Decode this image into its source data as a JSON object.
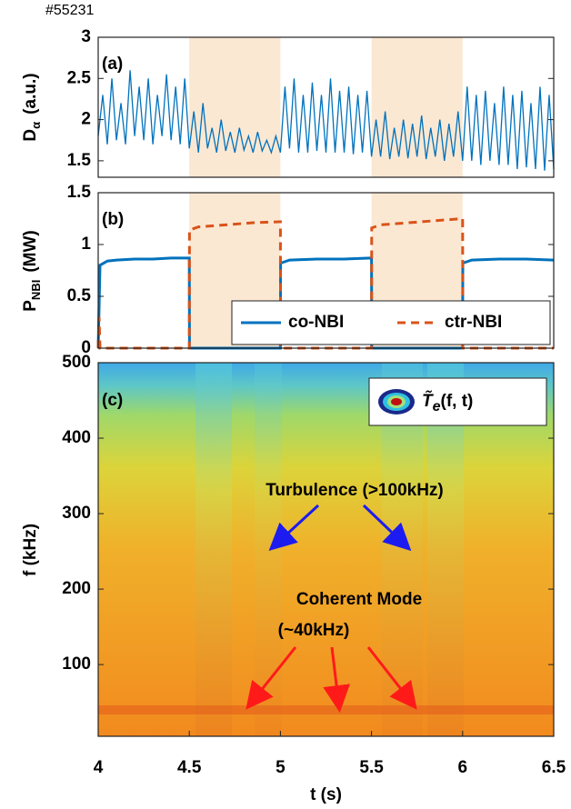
{
  "shot": "#55231",
  "chart_data": [
    {
      "type": "line",
      "label": "(a)",
      "ylabel": {
        "main": "D",
        "sub": "α",
        "unit": "(a.u.)"
      },
      "color": "#0072bd",
      "xlim": [
        4,
        6.5
      ],
      "ylim": [
        1.3,
        3
      ],
      "yticks": [
        1.5,
        2,
        2.5,
        3
      ],
      "highlight_spans": [
        [
          4.5,
          5
        ],
        [
          5.5,
          6
        ]
      ],
      "x": [
        4,
        4.025,
        4.05,
        4.075,
        4.1,
        4.125,
        4.15,
        4.175,
        4.2,
        4.225,
        4.25,
        4.275,
        4.3,
        4.325,
        4.35,
        4.375,
        4.4,
        4.425,
        4.45,
        4.475,
        4.5,
        4.525,
        4.55,
        4.575,
        4.6,
        4.625,
        4.65,
        4.675,
        4.7,
        4.725,
        4.75,
        4.775,
        4.8,
        4.825,
        4.85,
        4.875,
        4.9,
        4.925,
        4.95,
        4.975,
        5,
        5.025,
        5.05,
        5.075,
        5.1,
        5.125,
        5.15,
        5.175,
        5.2,
        5.225,
        5.25,
        5.275,
        5.3,
        5.325,
        5.35,
        5.375,
        5.4,
        5.425,
        5.45,
        5.475,
        5.5,
        5.525,
        5.55,
        5.575,
        5.6,
        5.625,
        5.65,
        5.675,
        5.7,
        5.725,
        5.75,
        5.775,
        5.8,
        5.825,
        5.85,
        5.875,
        5.9,
        5.925,
        5.95,
        5.975,
        6,
        6.025,
        6.05,
        6.075,
        6.1,
        6.125,
        6.15,
        6.175,
        6.2,
        6.225,
        6.25,
        6.275,
        6.3,
        6.325,
        6.35,
        6.375,
        6.4,
        6.425,
        6.45,
        6.475,
        6.5
      ],
      "values": [
        1.8,
        2.3,
        1.7,
        2.5,
        1.75,
        2.2,
        1.7,
        2.6,
        1.8,
        2.4,
        1.75,
        2.5,
        1.7,
        2.3,
        1.8,
        2.55,
        1.75,
        2.4,
        1.7,
        2.5,
        1.65,
        2.1,
        1.6,
        2.2,
        1.65,
        1.9,
        1.6,
        2.0,
        1.62,
        1.85,
        1.6,
        1.9,
        1.63,
        1.8,
        1.6,
        1.85,
        1.62,
        1.75,
        1.6,
        1.8,
        1.6,
        2.4,
        1.65,
        2.5,
        1.6,
        2.3,
        1.6,
        2.45,
        1.62,
        2.3,
        1.6,
        2.5,
        1.6,
        2.35,
        1.6,
        2.4,
        1.58,
        2.3,
        1.6,
        2.35,
        1.55,
        2.0,
        1.55,
        2.1,
        1.52,
        1.9,
        1.55,
        2.0,
        1.53,
        1.95,
        1.55,
        2.05,
        1.52,
        1.9,
        1.55,
        2.0,
        1.5,
        1.95,
        1.55,
        2.1,
        1.5,
        2.4,
        1.5,
        2.3,
        1.45,
        2.35,
        1.5,
        2.2,
        1.45,
        2.4,
        1.45,
        2.3,
        1.4,
        2.35,
        1.42,
        2.2,
        1.4,
        2.4,
        1.38,
        2.3,
        1.4
      ]
    },
    {
      "type": "line",
      "label": "(b)",
      "ylabel": {
        "main": "P",
        "sub": "NBI",
        "unit": "(MW)"
      },
      "xlim": [
        4,
        6.5
      ],
      "ylim": [
        0,
        1.5
      ],
      "yticks": [
        0,
        0.5,
        1,
        1.5
      ],
      "highlight_spans": [
        [
          4.5,
          5
        ],
        [
          5.5,
          6
        ]
      ],
      "legend_position": "lower right",
      "series": [
        {
          "name": "co-NBI",
          "color": "#0072bd",
          "linestyle": "solid",
          "x": [
            4,
            4.01,
            4.05,
            4.1,
            4.2,
            4.3,
            4.4,
            4.5,
            4.501,
            5.0,
            5.001,
            5.05,
            5.2,
            5.35,
            5.5,
            5.501,
            6.0,
            6.001,
            6.05,
            6.2,
            6.35,
            6.5
          ],
          "values": [
            0,
            0.8,
            0.84,
            0.85,
            0.86,
            0.86,
            0.87,
            0.87,
            0,
            0,
            0.82,
            0.85,
            0.86,
            0.86,
            0.87,
            0,
            0,
            0.82,
            0.85,
            0.86,
            0.86,
            0.85
          ]
        },
        {
          "name": "ctr-NBI",
          "color": "#d95319",
          "linestyle": "dashed",
          "x": [
            4,
            4.005,
            4.01,
            4.5,
            4.501,
            4.55,
            4.7,
            4.85,
            5.0,
            5.001,
            5.5,
            5.501,
            5.55,
            5.7,
            5.85,
            6.0,
            6.001,
            6.5
          ],
          "values": [
            0,
            0.3,
            0,
            0,
            1.14,
            1.17,
            1.19,
            1.21,
            1.22,
            0,
            0,
            1.16,
            1.19,
            1.21,
            1.23,
            1.25,
            0,
            0
          ]
        }
      ]
    },
    {
      "type": "spectrogram",
      "label": "(c)",
      "ylabel": {
        "main": "f (kHz)"
      },
      "xlabel": "t (s)",
      "xlim": [
        4,
        6.5
      ],
      "xticks": [
        4,
        4.5,
        5,
        5.5,
        6,
        6.5
      ],
      "ylim": [
        5,
        500
      ],
      "yticks": [
        100,
        200,
        300,
        400,
        500
      ],
      "legend_position": "upper right",
      "legend": {
        "main": "T̃",
        "sub": "e",
        "rest": "(f, t)"
      },
      "annotations": [
        {
          "text": "Turbulence (>100kHz)",
          "color": "#1c1cf0"
        },
        {
          "text": "Coherent Mode",
          "color": "#ff1a1a"
        },
        {
          "text": "(~40kHz)",
          "color": "#ff1a1a"
        }
      ]
    }
  ]
}
